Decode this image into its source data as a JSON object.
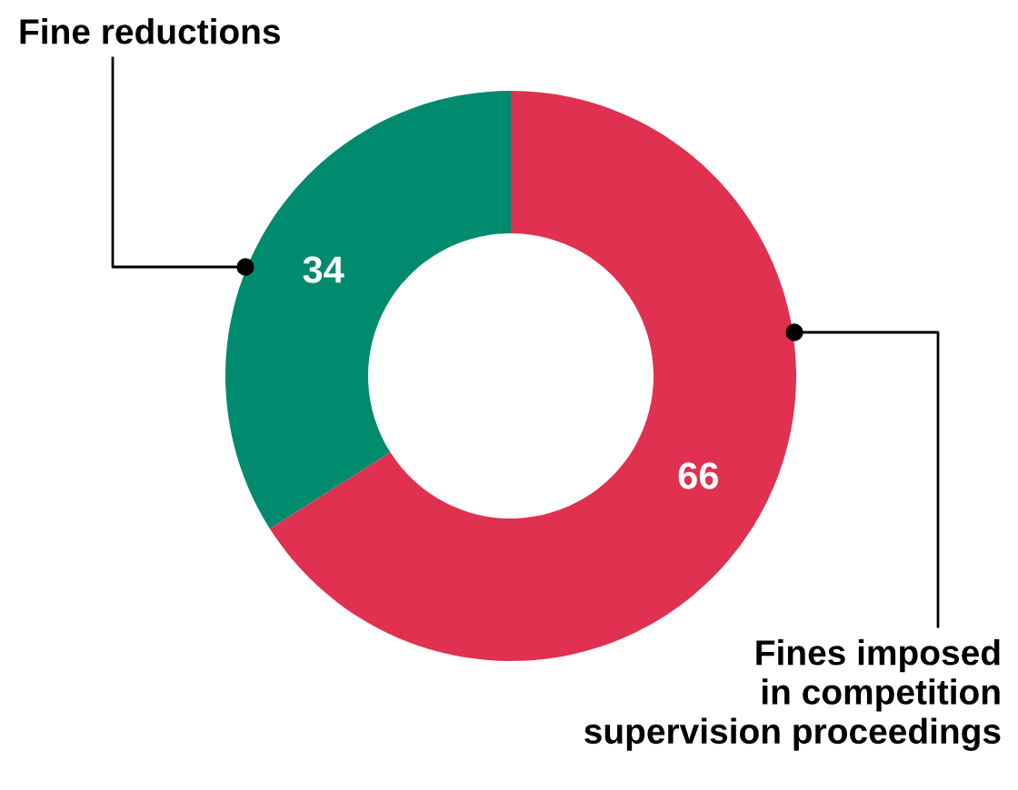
{
  "chart_data": {
    "type": "donut",
    "categories": [
      "Fines imposed\nin competition\nsupervision proceedings",
      "Fine reductions"
    ],
    "values": [
      66,
      34
    ],
    "colors": [
      "#e03150",
      "#008a6e"
    ],
    "data_labels": true,
    "legend": false
  }
}
